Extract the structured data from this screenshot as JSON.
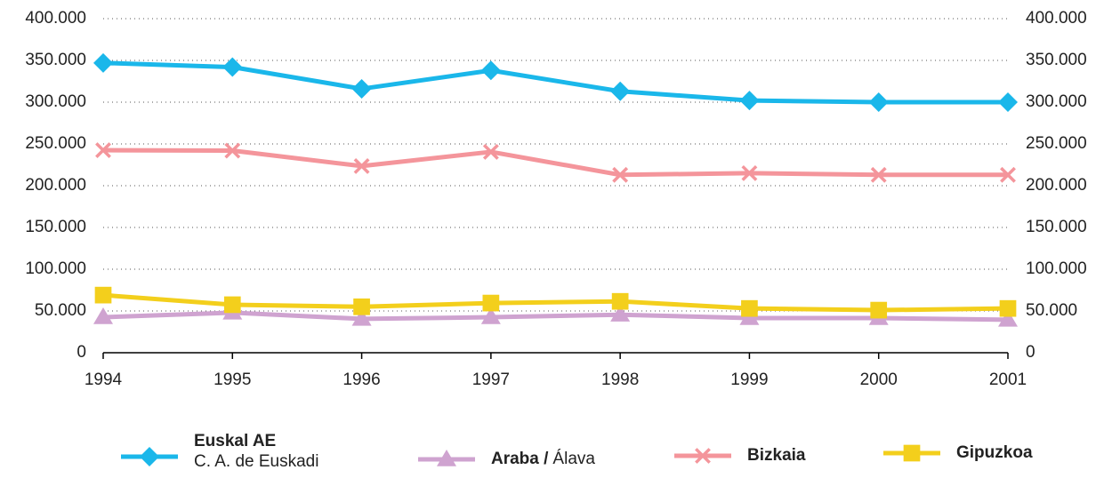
{
  "chart_data": {
    "type": "line",
    "x": [
      1994,
      1995,
      1996,
      1997,
      1998,
      1999,
      2000,
      2001
    ],
    "xlim": [
      1994,
      2001
    ],
    "xticks": [
      1994,
      1995,
      1996,
      1997,
      1998,
      1999,
      2000,
      2001
    ],
    "ylim": [
      0,
      400000
    ],
    "yticks": [
      0,
      {
        "value": 50000,
        "label": "50.000"
      },
      {
        "value": 100000,
        "label": "100.000"
      },
      {
        "value": 150000,
        "label": "150.000"
      },
      {
        "value": 200000,
        "label": "200.000"
      },
      {
        "value": 250000,
        "label": "250.000"
      },
      {
        "value": 300000,
        "label": "300.000"
      },
      {
        "value": 350000,
        "label": "350.000"
      },
      {
        "value": 400000,
        "label": "400.000"
      }
    ],
    "y2lim": [
      0,
      400000
    ],
    "y2ticks": [
      0,
      {
        "value": 50000,
        "label": "50.000"
      },
      {
        "value": 100000,
        "label": "100.000"
      },
      {
        "value": 150000,
        "label": "150.000"
      },
      {
        "value": 200000,
        "label": "200.000"
      },
      {
        "value": 250000,
        "label": "250.000"
      },
      {
        "value": 300000,
        "label": "300.000"
      },
      {
        "value": 350000,
        "label": "350.000"
      },
      {
        "value": 400000,
        "label": "400.000"
      }
    ],
    "grid": true,
    "legend": "bottom",
    "series": [
      {
        "name": "Euskal AE",
        "subname": "C. A. de Euskadi",
        "color": "#1ab7ea",
        "marker": "diamond",
        "values": [
          347000,
          342000,
          316000,
          338000,
          313000,
          302000,
          300000,
          300000
        ]
      },
      {
        "name": "Araba /",
        "subname": "Álava",
        "color": "#cfa3d0",
        "marker": "triangle",
        "values": [
          42500,
          48000,
          40500,
          42500,
          45500,
          41500,
          41500,
          39500
        ]
      },
      {
        "name": "Bizkaia",
        "color": "#f4959b",
        "marker": "cross",
        "values": [
          242500,
          242000,
          223500,
          240500,
          213000,
          215000,
          213000,
          213000
        ]
      },
      {
        "name": "Gipuzkoa",
        "color": "#f3cf1c",
        "marker": "square",
        "values": [
          69000,
          57500,
          55000,
          59500,
          61500,
          53000,
          51000,
          53000
        ]
      }
    ]
  }
}
